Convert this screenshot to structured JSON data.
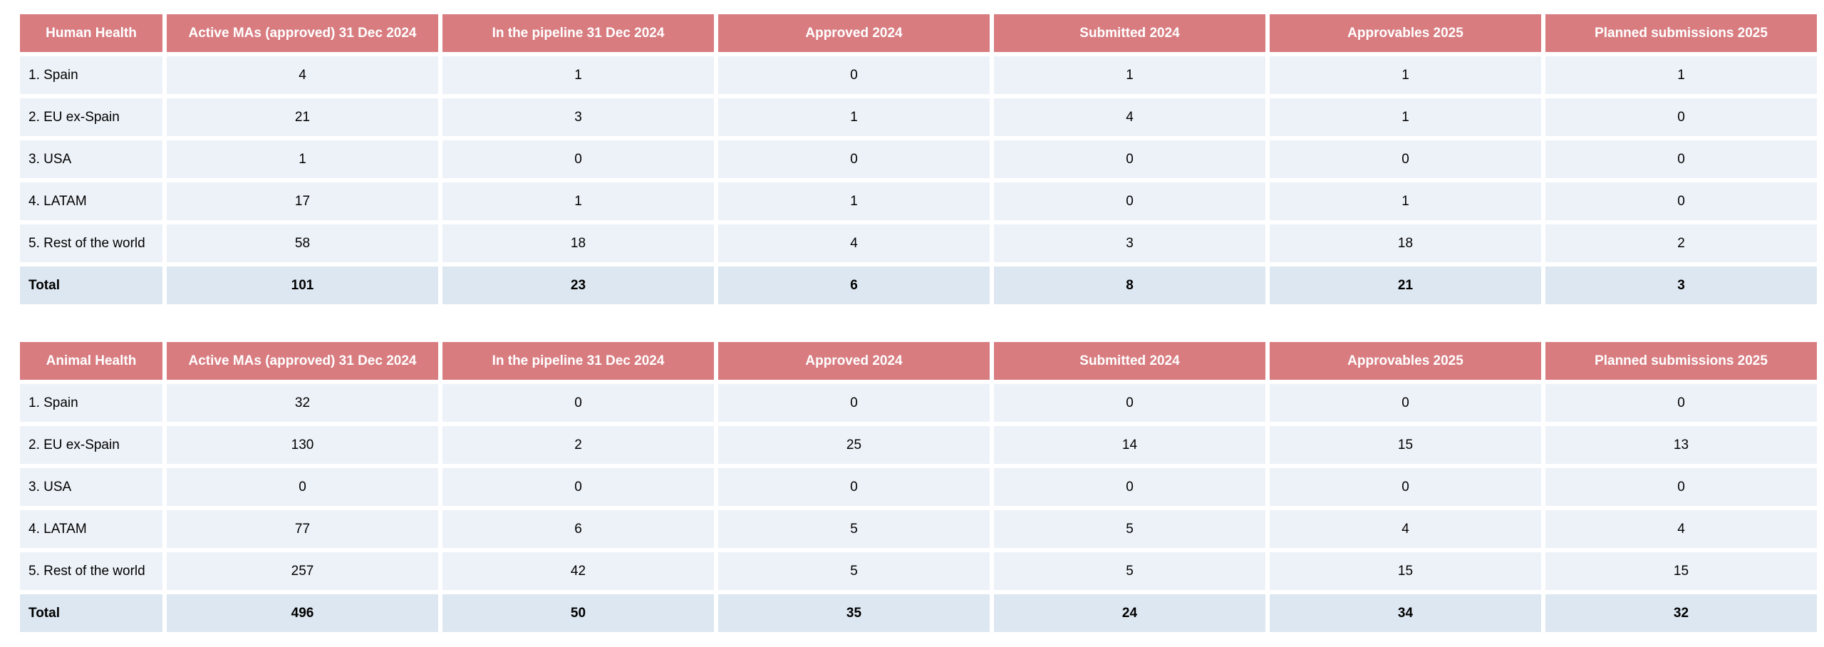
{
  "columns": [
    "Active MAs (approved) 31 Dec 2024",
    "In the pipeline 31 Dec 2024",
    "Approved 2024",
    "Submitted 2024",
    "Approvables 2025",
    "Planned submissions 2025"
  ],
  "tables": [
    {
      "title": "Human Health",
      "rows": [
        {
          "label": "1. Spain",
          "values": [
            "4",
            "1",
            "0",
            "1",
            "1",
            "1"
          ]
        },
        {
          "label": "2. EU ex-Spain",
          "values": [
            "21",
            "3",
            "1",
            "4",
            "1",
            "0"
          ]
        },
        {
          "label": "3. USA",
          "values": [
            "1",
            "0",
            "0",
            "0",
            "0",
            "0"
          ]
        },
        {
          "label": "4. LATAM",
          "values": [
            "17",
            "1",
            "1",
            "0",
            "1",
            "0"
          ]
        },
        {
          "label": "5. Rest of the world",
          "values": [
            "58",
            "18",
            "4",
            "3",
            "18",
            "2"
          ]
        }
      ],
      "total": {
        "label": "Total",
        "values": [
          "101",
          "23",
          "6",
          "8",
          "21",
          "3"
        ]
      }
    },
    {
      "title": "Animal Health",
      "rows": [
        {
          "label": "1. Spain",
          "values": [
            "32",
            "0",
            "0",
            "0",
            "0",
            "0"
          ]
        },
        {
          "label": "2. EU ex-Spain",
          "values": [
            "130",
            "2",
            "25",
            "14",
            "15",
            "13"
          ]
        },
        {
          "label": "3. USA",
          "values": [
            "0",
            "0",
            "0",
            "0",
            "0",
            "0"
          ]
        },
        {
          "label": "4. LATAM",
          "values": [
            "77",
            "6",
            "5",
            "5",
            "4",
            "4"
          ]
        },
        {
          "label": "5. Rest of the world",
          "values": [
            "257",
            "42",
            "5",
            "5",
            "15",
            "15"
          ]
        }
      ],
      "total": {
        "label": "Total",
        "values": [
          "496",
          "50",
          "35",
          "24",
          "34",
          "32"
        ]
      }
    }
  ],
  "colors": {
    "header_bg": "#d87c80",
    "header_text": "#ffffff",
    "row_bg": "#edf2f8",
    "total_bg": "#dde7f1"
  }
}
